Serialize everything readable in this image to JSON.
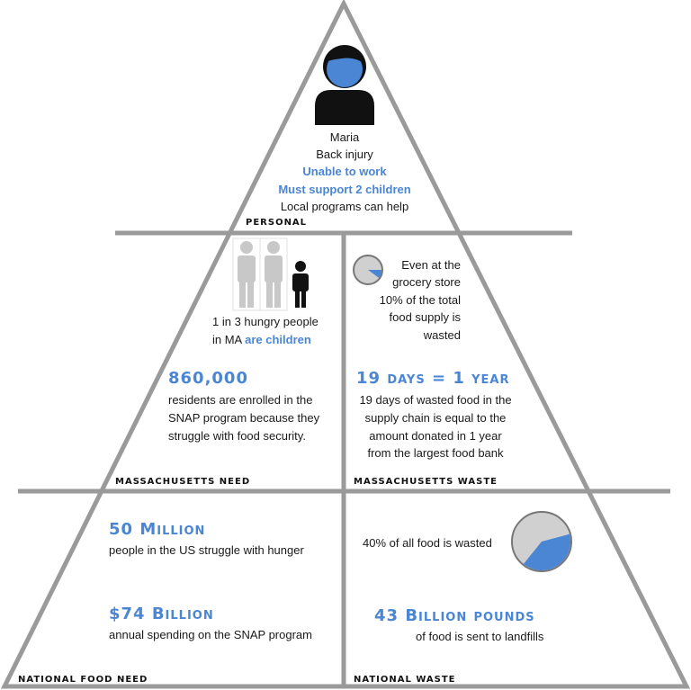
{
  "personal": {
    "section_label": "Personal",
    "icon": "person-icon",
    "lines": [
      "Maria",
      "Back injury",
      "Unable to work",
      "Must support 2 children",
      "Local programs can help"
    ]
  },
  "ma_need": {
    "section_label": "Massachusetts Need",
    "icon": "family-icon",
    "children_line1": "1 in 3 hungry people",
    "children_line2_a": "in MA ",
    "children_line2_b": "are children",
    "stat": "860,000",
    "stat_desc": [
      "residents are enrolled in the",
      "SNAP program because they",
      "struggle with food security."
    ]
  },
  "ma_waste": {
    "section_label": "Massachusetts Waste",
    "icon": "pie-icon",
    "store_lines": [
      "Even at the",
      "grocery store",
      "10% of the total",
      "food supply is",
      "wasted"
    ],
    "store_pie_fraction": 0.1,
    "stat": "19 days = 1 year",
    "stat_desc": [
      "19 days of wasted food in the",
      "supply chain is equal to the",
      "amount donated in 1 year",
      "from the largest food bank"
    ]
  },
  "national_need": {
    "section_label": "National Food Need",
    "stat1": "50 Million",
    "stat1_desc": "people in the US struggle with hunger",
    "stat2": "$74 Billion",
    "stat2_desc": "annual spending on the SNAP program"
  },
  "national_waste": {
    "section_label": "National Waste",
    "icon": "pie-icon",
    "pie_text": "40% of all food is wasted",
    "pie_fraction": 0.4,
    "stat": "43 Billion pounds",
    "stat_desc": "of food is sent to landfills"
  },
  "colors": {
    "accent": "#4a86d4",
    "frame": "#999999",
    "figure_gray": "#c8c8c8",
    "figure_dark": "#111111"
  }
}
